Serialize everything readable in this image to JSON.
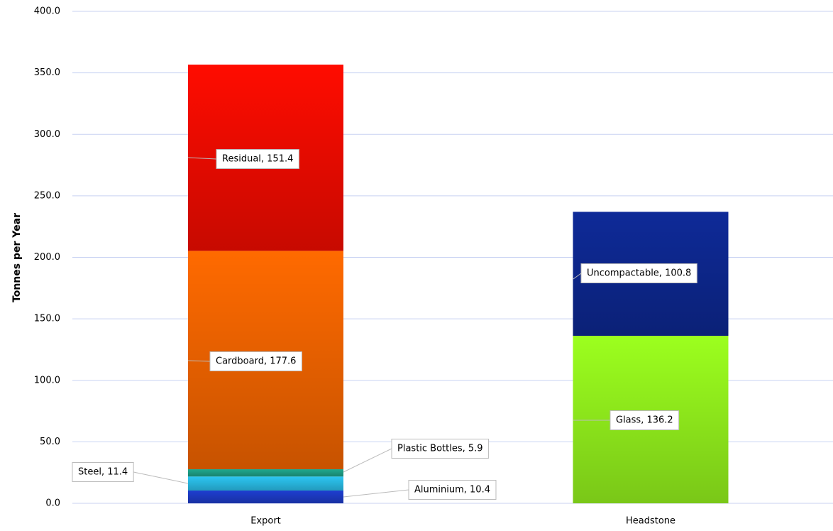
{
  "chart_data": {
    "type": "stacked_bar",
    "y_label": "Tonnes per Year",
    "categories": [
      "Export",
      "Headstone"
    ],
    "ylim": [
      0,
      400
    ],
    "yticks": [
      {
        "value": 0,
        "label": "0.0"
      },
      {
        "value": 50,
        "label": "50.0"
      },
      {
        "value": 100,
        "label": "100.0"
      },
      {
        "value": 150,
        "label": "150.0"
      },
      {
        "value": 200,
        "label": "200.0"
      },
      {
        "value": 250,
        "label": "250.0"
      },
      {
        "value": 300,
        "label": "300.0"
      },
      {
        "value": 350,
        "label": "350.0"
      },
      {
        "value": 400,
        "label": "400.0"
      }
    ],
    "grid": true,
    "series": [
      {
        "color": "#1e3ed0",
        "values": [
          10.4,
          null
        ],
        "value_labels": [
          "Aluminium, 10.4",
          null
        ]
      },
      {
        "color": "#2cc6f2",
        "values": [
          11.4,
          null
        ],
        "value_labels": [
          "Steel, 11.4",
          null
        ]
      },
      {
        "color": "#1fa88e",
        "values": [
          5.9,
          null
        ],
        "value_labels": [
          "Plastic Bottles, 5.9",
          null
        ]
      },
      {
        "color": "#ff6a00",
        "values": [
          177.6,
          null
        ],
        "value_labels": [
          "Cardboard, 177.6",
          null
        ]
      },
      {
        "color": "#ff0c00",
        "values": [
          151.4,
          null
        ],
        "value_labels": [
          "Residual, 151.4",
          null
        ]
      },
      {
        "color": "#9cff1e",
        "values": [
          null,
          136.2
        ],
        "value_labels": [
          null,
          "Glass, 136.2"
        ]
      },
      {
        "color": "#0e2a98",
        "values": [
          null,
          100.8
        ],
        "value_labels": [
          null,
          "Uncompactable, 100.8"
        ]
      }
    ]
  }
}
